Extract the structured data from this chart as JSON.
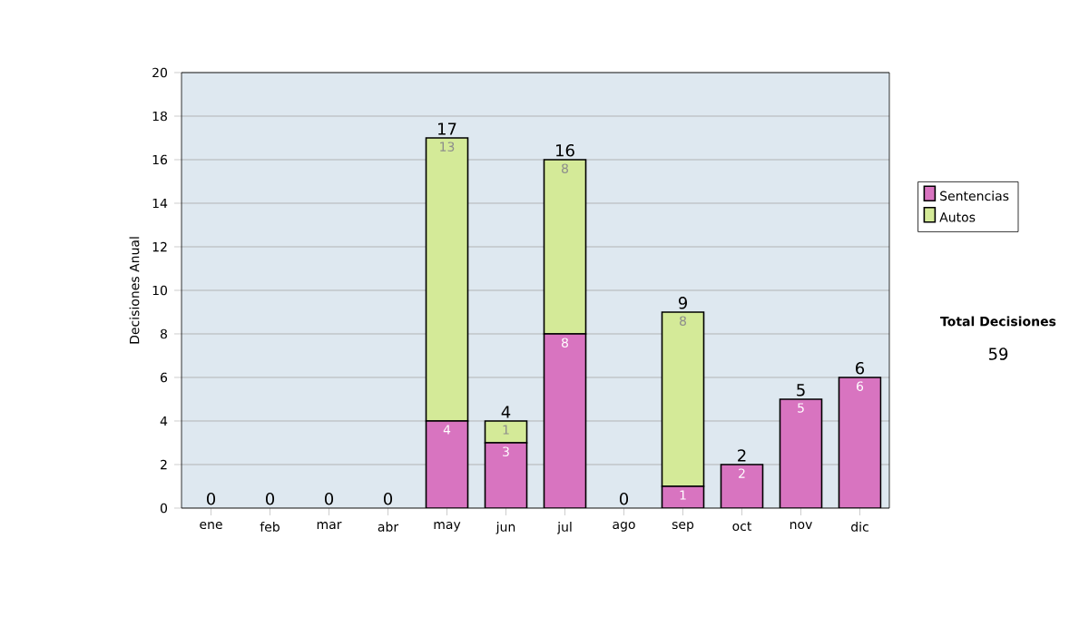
{
  "chart_data": {
    "type": "bar",
    "stacked": true,
    "ylabel": "Decisiones Anual",
    "categories": [
      "ene",
      "feb",
      "mar",
      "abr",
      "may",
      "jun",
      "jul",
      "ago",
      "sep",
      "oct",
      "nov",
      "dic"
    ],
    "series": [
      {
        "name": "Sentencias",
        "color": "#d874c0",
        "values": [
          0,
          0,
          0,
          0,
          4,
          3,
          8,
          0,
          1,
          2,
          5,
          6
        ],
        "value_labels": [
          null,
          null,
          null,
          null,
          "4",
          "3",
          "8",
          null,
          "1",
          "2",
          "5",
          "6"
        ]
      },
      {
        "name": "Autos",
        "color": "#d4ea98",
        "values": [
          0,
          0,
          0,
          0,
          13,
          1,
          8,
          0,
          8,
          0,
          0,
          0
        ],
        "value_labels": [
          null,
          null,
          null,
          null,
          "13",
          "1",
          "8",
          null,
          "8",
          null,
          null,
          null
        ]
      }
    ],
    "totals": [
      "0",
      "0",
      "0",
      "0",
      "17",
      "4",
      "16",
      "0",
      "9",
      "2",
      "5",
      "6"
    ],
    "ylim": [
      0,
      20
    ],
    "yticks": [
      0,
      2,
      4,
      6,
      8,
      10,
      12,
      14,
      16,
      18,
      20
    ],
    "grid": "y",
    "legend": "right",
    "annotations": [
      "Total Decisiones",
      "59"
    ]
  }
}
